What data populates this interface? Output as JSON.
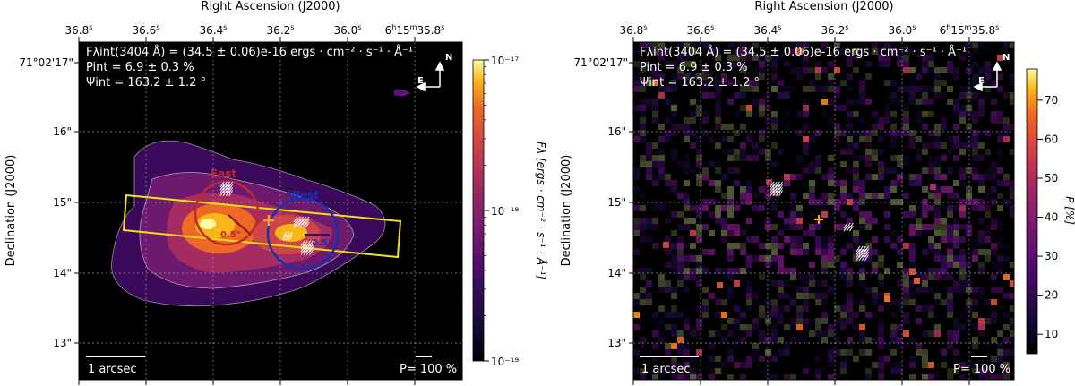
{
  "chart_data": [
    {
      "type": "heatmap",
      "title": "Right Ascension (J2000)",
      "xlabel": "Right Ascension (J2000)",
      "ylabel": "Declination (J2000)",
      "x_ticks": [
        "36.8s",
        "36.6s",
        "36.4s",
        "36.2s",
        "36.0s",
        "6h15m35.8s"
      ],
      "y_ticks": [
        "16\"",
        "15\"",
        "14\"",
        "13\""
      ],
      "y_top_label": "71°02'17\"",
      "colorbar": {
        "label": "Fλ [ergs · cm⁻² · s⁻¹ · Å⁻¹]",
        "scale": "log",
        "range": [
          1e-19,
          1e-17
        ],
        "ticks": [
          "10⁻¹⁷",
          "10⁻¹⁸",
          "10⁻¹⁹"
        ],
        "cmap": "inferno"
      },
      "annotations": {
        "flux": "Fλint(3404 Å) = (34.5 ± 0.06)e-16 ergs · cm⁻² · s⁻¹ · Å⁻¹",
        "pol": "Pint = 6.9 ± 0.3 %",
        "angle": "Ψint = 163.2 ± 1.2 °",
        "scalebar": "1 arcsec",
        "pol_scale": "P= 100 %",
        "north": "N",
        "east": "E",
        "region_east": "East",
        "region_west": "West",
        "aperture_east": "0.5\"",
        "aperture_west": "0.5\""
      }
    },
    {
      "type": "heatmap",
      "title": "Right Ascension (J2000)",
      "xlabel": "Right Ascension (J2000)",
      "ylabel": "Declination (J2000)",
      "x_ticks": [
        "36.8s",
        "36.6s",
        "36.4s",
        "36.2s",
        "36.0s",
        "6h15m35.8s"
      ],
      "y_ticks": [
        "16\"",
        "15\"",
        "14\"",
        "13\""
      ],
      "y_top_label": "71°02'17\"",
      "colorbar": {
        "label": "P [%]",
        "scale": "linear",
        "range": [
          5,
          78
        ],
        "ticks": [
          "70",
          "60",
          "50",
          "40",
          "30",
          "20",
          "10"
        ],
        "cmap": "inferno"
      },
      "annotations": {
        "flux": "Fλint(3404 Å) = (34.5 ± 0.06)e-16 ergs · cm⁻² · s⁻¹ · Å⁻¹",
        "pol": "Pint = 6.9 ± 0.3 %",
        "angle": "Ψint = 163.2 ± 1.2 °",
        "scalebar": "1 arcsec",
        "pol_scale": "P= 100 %",
        "north": "N",
        "east": "E"
      }
    }
  ],
  "colors": {
    "east_region": "#c0282a",
    "west_region": "#1a2fb0",
    "slit": "#f2e11a",
    "center_marker": "#f5a623",
    "background": "#000000"
  }
}
